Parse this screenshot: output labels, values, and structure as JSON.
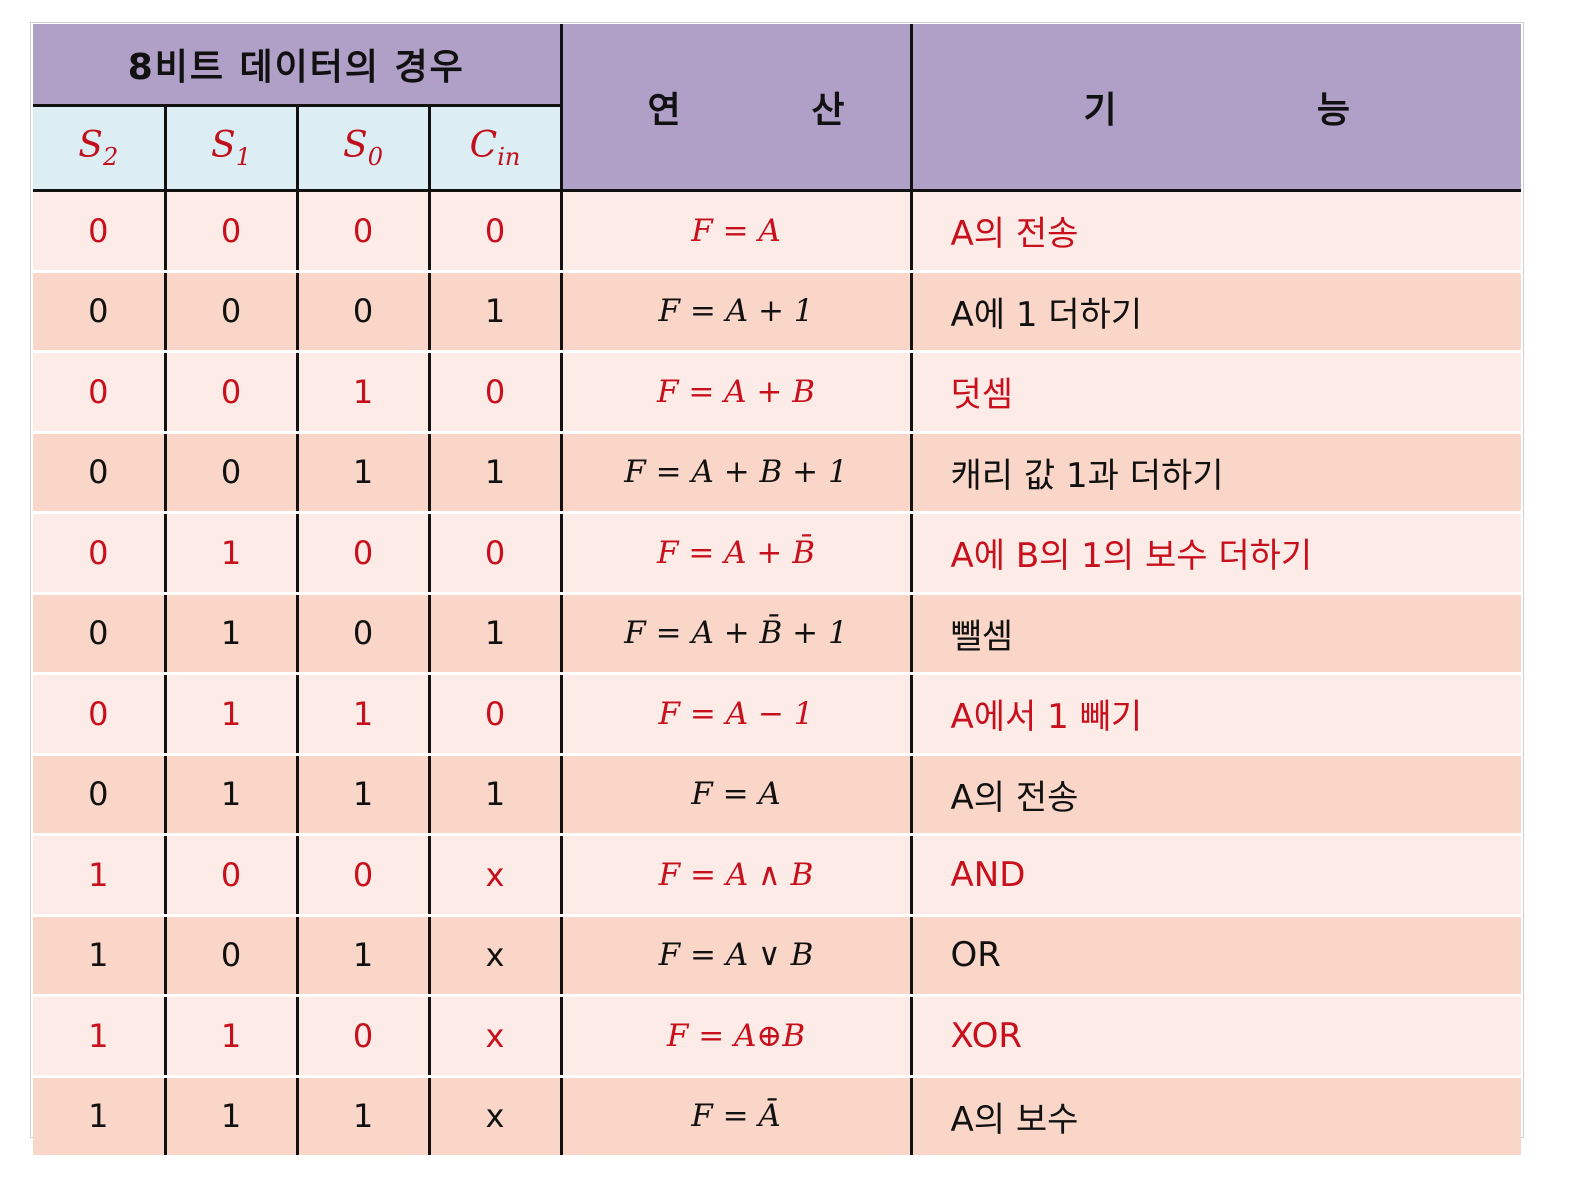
{
  "header": {
    "group_title": "8비트 데이터의 경우",
    "op_chars": [
      "연",
      "산"
    ],
    "fn_chars": [
      "기",
      "능"
    ],
    "sub_columns": [
      {
        "base": "S",
        "sub": "2"
      },
      {
        "base": "S",
        "sub": "1"
      },
      {
        "base": "S",
        "sub": "0"
      },
      {
        "base": "C",
        "sub": "in"
      }
    ]
  },
  "rows": [
    {
      "s2": "0",
      "s1": "0",
      "s0": "0",
      "cin": "0",
      "op": "F = A",
      "fn": "A의 전송"
    },
    {
      "s2": "0",
      "s1": "0",
      "s0": "0",
      "cin": "1",
      "op": "F = A + 1",
      "fn": "A에 1 더하기"
    },
    {
      "s2": "0",
      "s1": "0",
      "s0": "1",
      "cin": "0",
      "op": "F = A + B",
      "fn": "덧셈"
    },
    {
      "s2": "0",
      "s1": "0",
      "s0": "1",
      "cin": "1",
      "op": "F = A + B + 1",
      "fn": "캐리 값 1과 더하기"
    },
    {
      "s2": "0",
      "s1": "1",
      "s0": "0",
      "cin": "0",
      "op": "F = A + B̄",
      "fn": "A에 B의 1의 보수 더하기"
    },
    {
      "s2": "0",
      "s1": "1",
      "s0": "0",
      "cin": "1",
      "op": "F = A + B̄ + 1",
      "fn": "뺄셈"
    },
    {
      "s2": "0",
      "s1": "1",
      "s0": "1",
      "cin": "0",
      "op": "F = A − 1",
      "fn": "A에서 1 빼기"
    },
    {
      "s2": "0",
      "s1": "1",
      "s0": "1",
      "cin": "1",
      "op": "F = A",
      "fn": "A의 전송"
    },
    {
      "s2": "1",
      "s1": "0",
      "s0": "0",
      "cin": "x",
      "op": "F = A ∧ B",
      "fn": "AND"
    },
    {
      "s2": "1",
      "s1": "0",
      "s0": "1",
      "cin": "x",
      "op": "F = A ∨ B",
      "fn": "OR"
    },
    {
      "s2": "1",
      "s1": "1",
      "s0": "0",
      "cin": "x",
      "op": "F = A⊕B",
      "fn": "XOR"
    },
    {
      "s2": "1",
      "s1": "1",
      "s0": "1",
      "cin": "x",
      "op": "F = Ā",
      "fn": "A의 보수"
    }
  ]
}
